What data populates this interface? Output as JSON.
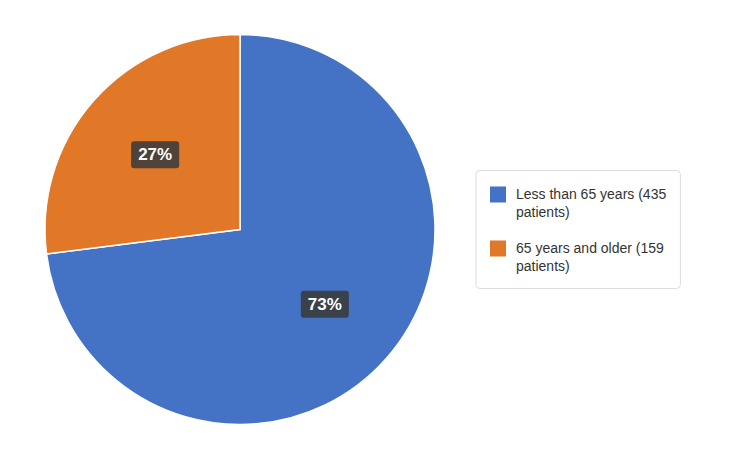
{
  "chart_data": {
    "type": "pie",
    "categories": [
      "Less than 65 years (435\npatients)",
      "65 years and older (159\npatients)"
    ],
    "values": [
      73,
      27
    ],
    "value_labels": [
      "73%",
      "27%"
    ],
    "colors": [
      "#4472C4",
      "#E07828"
    ],
    "data_labels": true,
    "legend": "right"
  }
}
